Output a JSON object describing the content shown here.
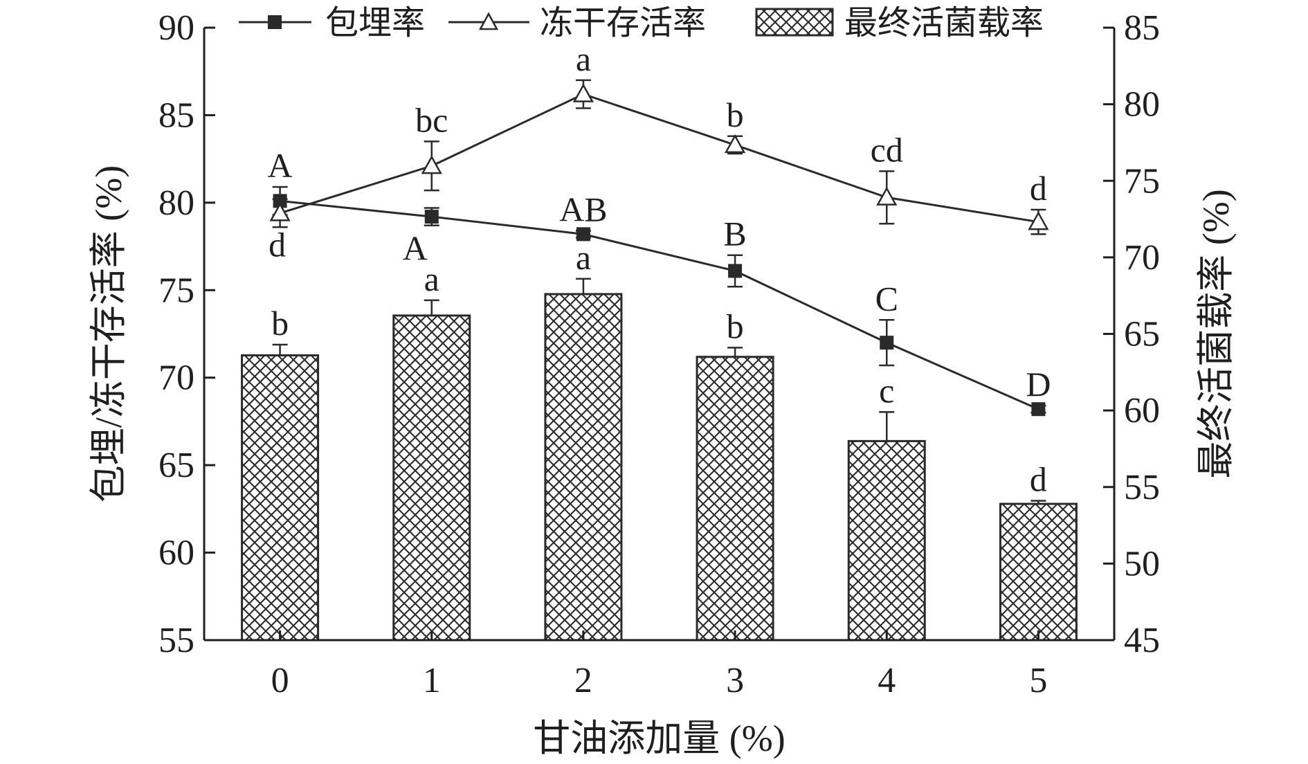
{
  "chart_data": {
    "type": "bar",
    "categories": [
      "0",
      "1",
      "2",
      "3",
      "4",
      "5"
    ],
    "xlabel": "甘油添加量 (%)",
    "ylabel_left": "包埋/冻干存活率 (%)",
    "ylabel_right": "最终活菌载率 (%)",
    "ylim_left": [
      55,
      90
    ],
    "ylim_right": [
      45,
      85
    ],
    "yticks_left": [
      "55",
      "60",
      "65",
      "70",
      "75",
      "80",
      "85",
      "90"
    ],
    "yticks_right": [
      "45",
      "50",
      "55",
      "60",
      "65",
      "70",
      "75",
      "80",
      "85"
    ],
    "legend_position": "top",
    "grid": false,
    "colors": {
      "axis": "#1f1f1f",
      "line": "#2a2a2a",
      "bar_fill": "#ffffff",
      "bar_hatch": "#2a2a2a"
    },
    "series": [
      {
        "name": "包埋率",
        "kind": "line",
        "axis": "left",
        "marker": "filled-square",
        "values": [
          80.1,
          79.2,
          78.2,
          76.1,
          72.0,
          68.2
        ],
        "errors": [
          0.8,
          0.5,
          0.2,
          0.9,
          1.3,
          0.2
        ],
        "letters": [
          "A",
          "A",
          "AB",
          "B",
          "C",
          "D"
        ]
      },
      {
        "name": "冻干存活率",
        "kind": "line",
        "axis": "left",
        "marker": "open-triangle",
        "values": [
          79.4,
          82.1,
          86.2,
          83.3,
          80.3,
          78.9
        ],
        "errors": [
          0.8,
          1.4,
          0.8,
          0.5,
          1.5,
          0.7
        ],
        "letters": [
          "d",
          "bc",
          "a",
          "b",
          "cd",
          "d"
        ]
      },
      {
        "name": "最终活菌载率",
        "kind": "bar",
        "axis": "right",
        "pattern": "crosshatch",
        "values": [
          63.6,
          66.2,
          67.6,
          63.5,
          58.0,
          53.9
        ],
        "errors": [
          0.7,
          1.0,
          1.0,
          0.6,
          1.9,
          0.2
        ],
        "letters": [
          "b",
          "a",
          "a",
          "b",
          "c",
          "d"
        ]
      }
    ]
  }
}
